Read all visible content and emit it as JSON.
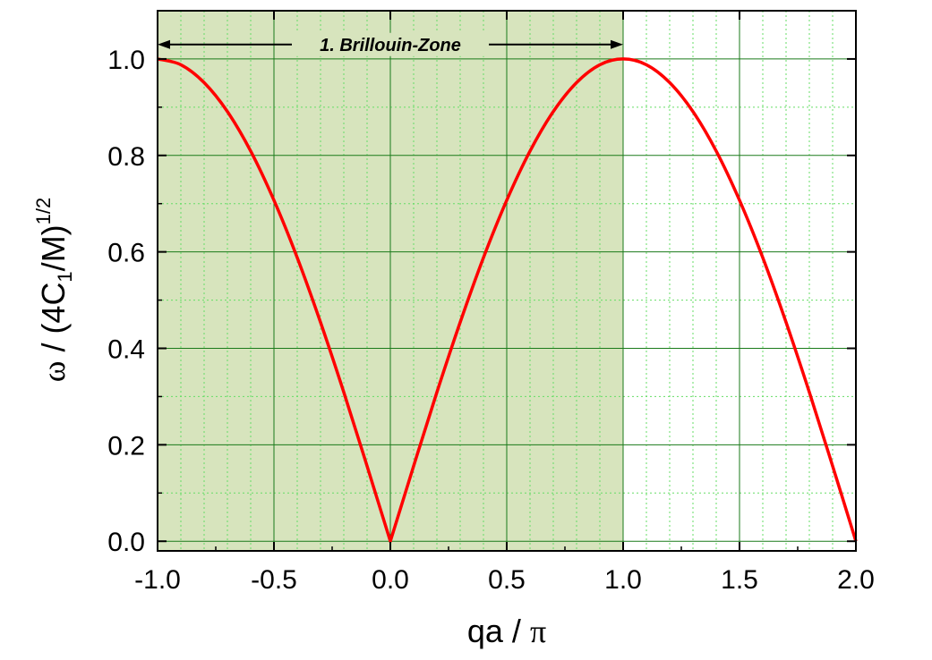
{
  "chart_data": {
    "type": "line",
    "title": "",
    "xlabel": {
      "prefix": "qa / ",
      "symbol": "π"
    },
    "ylabel": {
      "symbol": "ω",
      "text1": "  / (4C",
      "sub": "1",
      "text2": "/M)",
      "sup": "1/2"
    },
    "xlim": [
      -1.0,
      2.0
    ],
    "ylim": [
      -0.02,
      1.1
    ],
    "xticks": [
      -1.0,
      -0.5,
      0.0,
      0.5,
      1.0,
      1.5,
      2.0
    ],
    "xtick_labels": [
      "-1.0",
      "-0.5",
      "0.0",
      "0.5",
      "1.0",
      "1.5",
      "2.0"
    ],
    "yticks": [
      0.0,
      0.2,
      0.4,
      0.6,
      0.8,
      1.0
    ],
    "ytick_labels": [
      "0.0",
      "0.2",
      "0.4",
      "0.6",
      "0.8",
      "1.0"
    ],
    "grid": true,
    "series": [
      {
        "x": [
          -1.0,
          -0.9,
          -0.8,
          -0.7,
          -0.6,
          -0.5,
          -0.4,
          -0.3,
          -0.2,
          -0.1,
          0.0,
          0.1,
          0.2,
          0.3,
          0.4,
          0.5,
          0.6,
          0.7,
          0.8,
          0.9,
          1.0,
          1.1,
          1.2,
          1.3,
          1.4,
          1.5,
          1.6,
          1.7,
          1.8,
          1.9,
          2.0
        ],
        "y": [
          1.0,
          0.988,
          0.951,
          0.891,
          0.809,
          0.707,
          0.588,
          0.454,
          0.309,
          0.156,
          0.0,
          0.156,
          0.309,
          0.454,
          0.588,
          0.707,
          0.809,
          0.891,
          0.951,
          0.988,
          1.0,
          0.988,
          0.951,
          0.891,
          0.809,
          0.707,
          0.588,
          0.454,
          0.309,
          0.156,
          0.0
        ],
        "color": "#ff0000"
      }
    ],
    "shaded_region": {
      "x_range": [
        -1.0,
        1.0
      ],
      "color": "#d7e4bd"
    },
    "annotation": {
      "text": "1. Brillouin-Zone",
      "x_range": [
        -1.0,
        1.0
      ],
      "y": 1.03
    },
    "colors": {
      "major_grid": "#1a7a1a",
      "minor_grid": "#66dd66",
      "axes": "#000000"
    }
  }
}
